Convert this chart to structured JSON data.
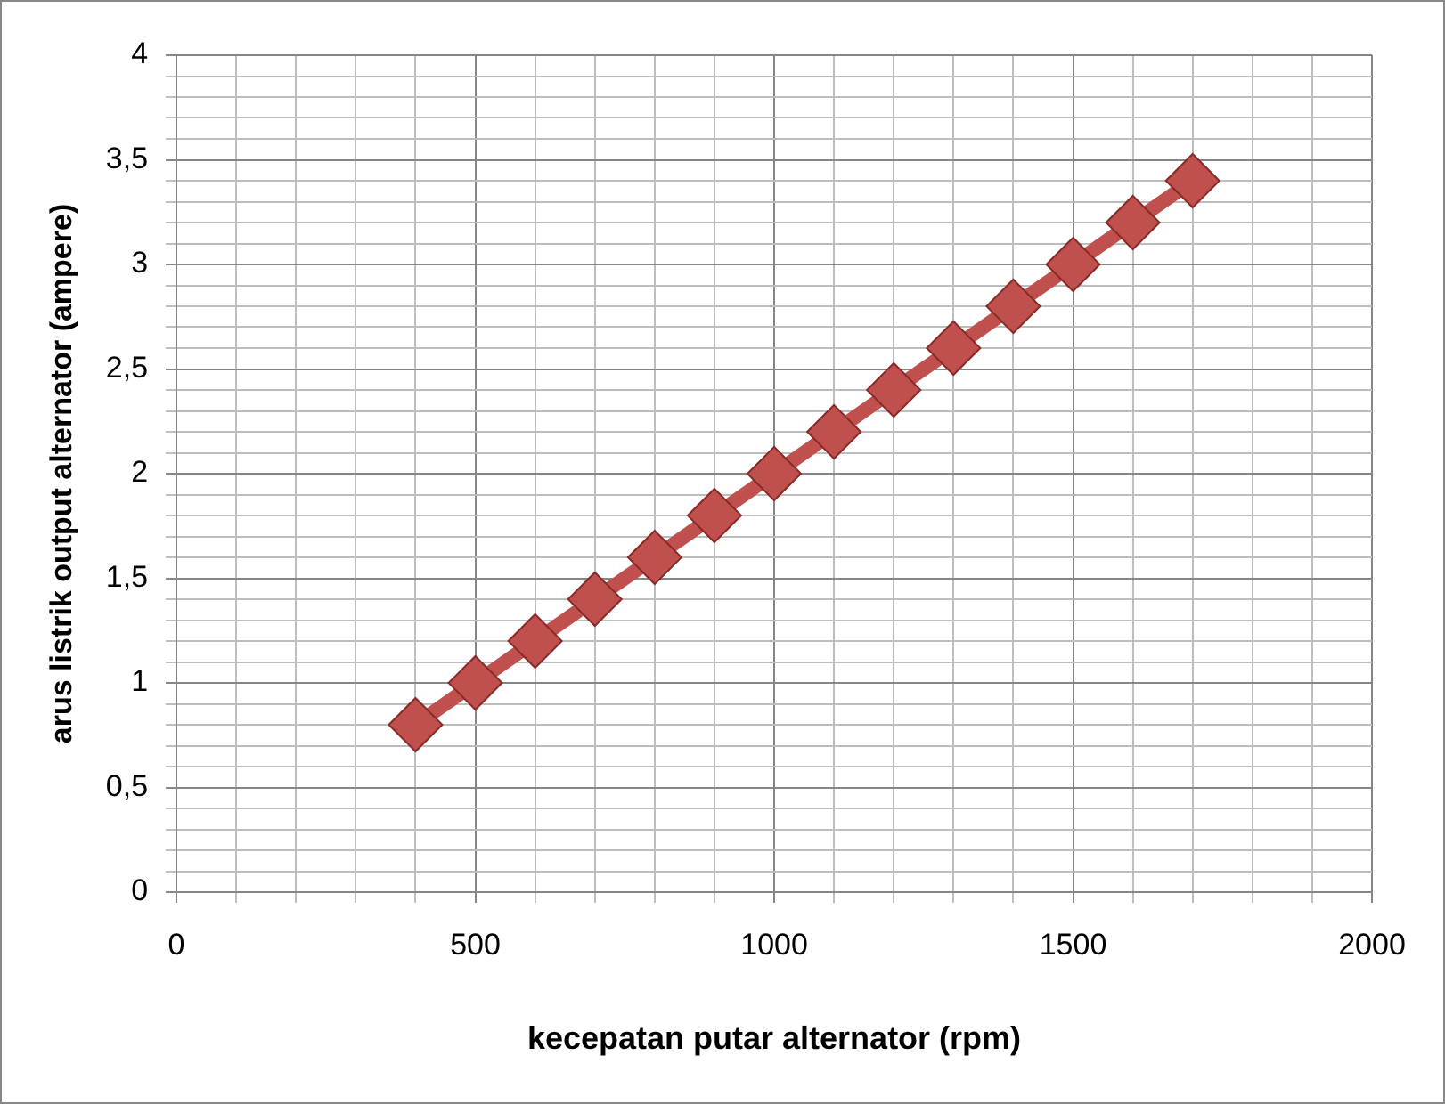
{
  "chart_data": {
    "type": "line",
    "xlabel": "kecepatan putar alternator (rpm)",
    "ylabel": "arus listrik output alternator (ampere)",
    "x": [
      400,
      500,
      600,
      700,
      800,
      900,
      1000,
      1100,
      1200,
      1300,
      1400,
      1500,
      1600,
      1700
    ],
    "series": [
      {
        "color": "#c0504d",
        "values": [
          0.8,
          1.0,
          1.2,
          1.4,
          1.6,
          1.8,
          2.0,
          2.2,
          2.4,
          2.6,
          2.8,
          3.0,
          3.2,
          3.4
        ]
      }
    ],
    "xlim": [
      0,
      2000
    ],
    "xticks": [
      0,
      {
        "value": 100,
        "label": null
      },
      {
        "value": 200,
        "label": null
      },
      {
        "value": 300,
        "label": null
      },
      {
        "value": 400,
        "label": null
      },
      500,
      {
        "value": 600,
        "label": null
      },
      {
        "value": 700,
        "label": null
      },
      {
        "value": 800,
        "label": null
      },
      {
        "value": 900,
        "label": null
      },
      1000,
      {
        "value": 1100,
        "label": null
      },
      {
        "value": 1200,
        "label": null
      },
      {
        "value": 1300,
        "label": null
      },
      {
        "value": 1400,
        "label": null
      },
      1500,
      {
        "value": 1600,
        "label": null
      },
      {
        "value": 1700,
        "label": null
      },
      {
        "value": 1800,
        "label": null
      },
      {
        "value": 1900,
        "label": null
      },
      2000
    ],
    "ylim": [
      0,
      4
    ],
    "yticks": [
      0,
      {
        "value": 0.1,
        "label": null
      },
      {
        "value": 0.2,
        "label": null
      },
      {
        "value": 0.3,
        "label": null
      },
      {
        "value": 0.4,
        "label": null
      },
      {
        "value": 0.5,
        "label": "0,5"
      },
      {
        "value": 0.6,
        "label": null
      },
      {
        "value": 0.7,
        "label": null
      },
      {
        "value": 0.8,
        "label": null
      },
      {
        "value": 0.9,
        "label": null
      },
      1,
      {
        "value": 1.1,
        "label": null
      },
      {
        "value": 1.2,
        "label": null
      },
      {
        "value": 1.3,
        "label": null
      },
      {
        "value": 1.4,
        "label": null
      },
      {
        "value": 1.5,
        "label": "1,5"
      },
      {
        "value": 1.6,
        "label": null
      },
      {
        "value": 1.7,
        "label": null
      },
      {
        "value": 1.8,
        "label": null
      },
      {
        "value": 1.9,
        "label": null
      },
      2,
      {
        "value": 2.1,
        "label": null
      },
      {
        "value": 2.2,
        "label": null
      },
      {
        "value": 2.3,
        "label": null
      },
      {
        "value": 2.4,
        "label": null
      },
      {
        "value": 2.5,
        "label": "2,5"
      },
      {
        "value": 2.6,
        "label": null
      },
      {
        "value": 2.7,
        "label": null
      },
      {
        "value": 2.8,
        "label": null
      },
      {
        "value": 2.9,
        "label": null
      },
      3,
      {
        "value": 3.1,
        "label": null
      },
      {
        "value": 3.2,
        "label": null
      },
      {
        "value": 3.3,
        "label": null
      },
      {
        "value": 3.4,
        "label": null
      },
      {
        "value": 3.5,
        "label": "3,5"
      },
      {
        "value": 3.6,
        "label": null
      },
      {
        "value": 3.7,
        "label": null
      },
      {
        "value": 3.8,
        "label": null
      },
      {
        "value": 3.9,
        "label": null
      },
      4
    ],
    "grid": true,
    "marker": "diamond",
    "line_style": "solid",
    "legend": false
  }
}
